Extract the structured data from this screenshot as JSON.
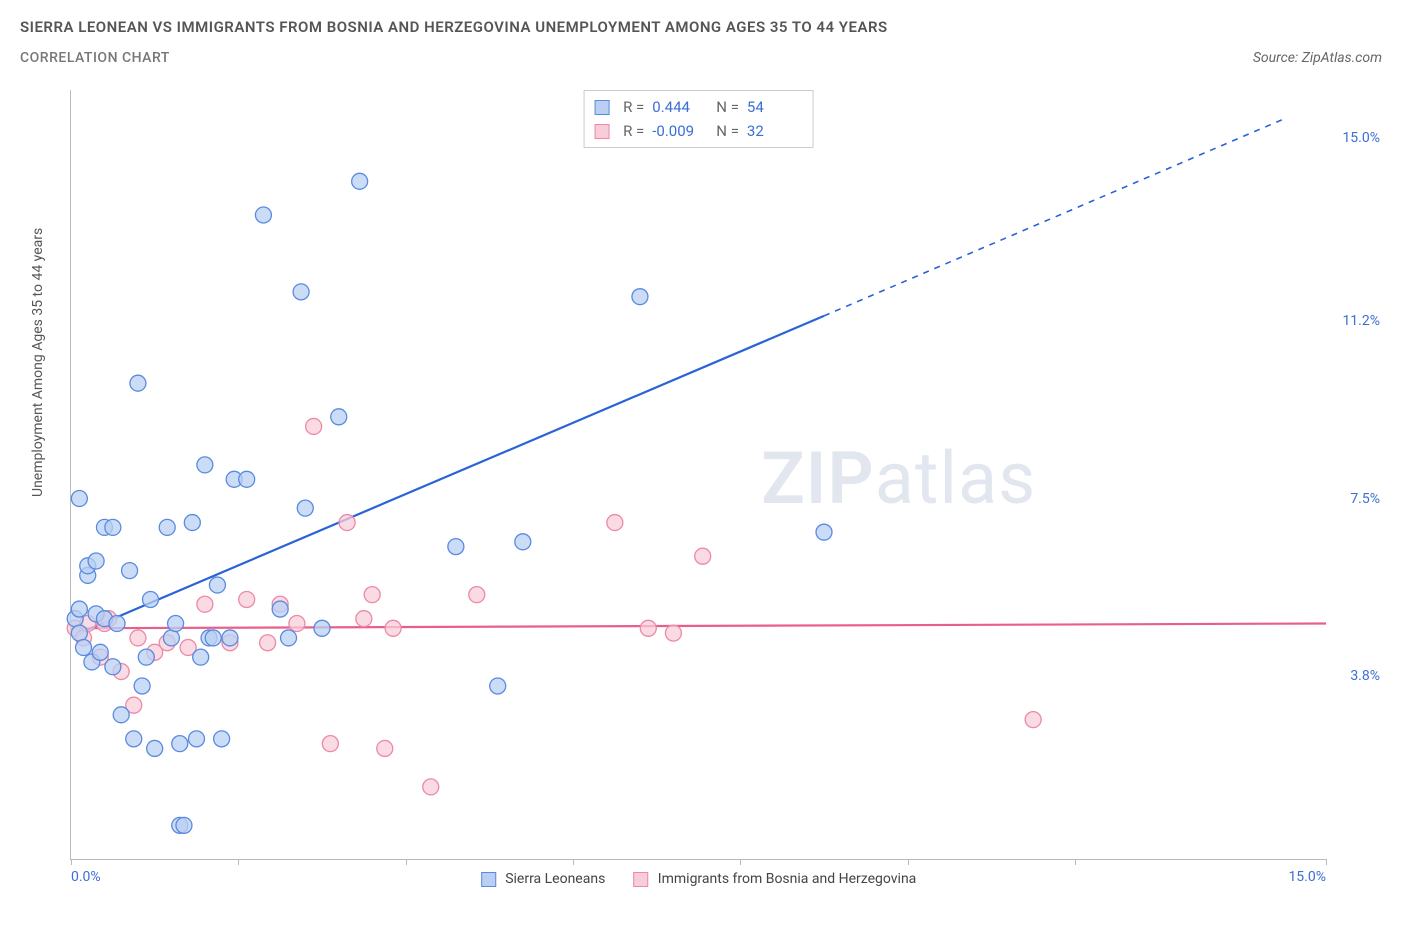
{
  "title": "SIERRA LEONEAN VS IMMIGRANTS FROM BOSNIA AND HERZEGOVINA UNEMPLOYMENT AMONG AGES 35 TO 44 YEARS",
  "subtitle": "CORRELATION CHART",
  "source": "Source: ZipAtlas.com",
  "y_axis_label": "Unemployment Among Ages 35 to 44 years",
  "watermark_a": "ZIP",
  "watermark_b": "atlas",
  "axes": {
    "xlim": [
      0,
      15
    ],
    "ylim": [
      0,
      16
    ],
    "x_ticks_at": [
      0,
      2,
      4,
      6,
      8,
      10,
      12,
      15
    ],
    "x_tick_labels": [
      {
        "pos": 0,
        "text": "0.0%"
      },
      {
        "pos": 15,
        "text": "15.0%",
        "align": "right"
      }
    ],
    "y_tick_labels": [
      {
        "pos": 3.8,
        "text": "3.8%"
      },
      {
        "pos": 7.5,
        "text": "7.5%"
      },
      {
        "pos": 11.2,
        "text": "11.2%"
      },
      {
        "pos": 15.0,
        "text": "15.0%"
      }
    ]
  },
  "series": {
    "a": {
      "name": "Sierra Leoneans",
      "stroke": "#2a63d6",
      "fill": "#b9d0f3",
      "marker_border": "#5a8ae0",
      "marker_r": 8,
      "R": "0.444",
      "N": "54",
      "trend": {
        "x1": 0.1,
        "y1": 4.7,
        "x2": 9.0,
        "y2": 11.3,
        "ext_x2": 14.5,
        "ext_y2": 15.4
      },
      "points": [
        [
          0.05,
          5.0
        ],
        [
          0.1,
          5.2
        ],
        [
          0.1,
          4.7
        ],
        [
          0.1,
          7.5
        ],
        [
          0.15,
          4.4
        ],
        [
          0.2,
          5.9
        ],
        [
          0.2,
          6.1
        ],
        [
          0.25,
          4.1
        ],
        [
          0.3,
          6.2
        ],
        [
          0.3,
          5.1
        ],
        [
          0.35,
          4.3
        ],
        [
          0.4,
          6.9
        ],
        [
          0.4,
          5.0
        ],
        [
          0.5,
          4.0
        ],
        [
          0.5,
          6.9
        ],
        [
          0.55,
          4.9
        ],
        [
          0.6,
          3.0
        ],
        [
          0.7,
          6.0
        ],
        [
          0.75,
          2.5
        ],
        [
          0.8,
          9.9
        ],
        [
          0.85,
          3.6
        ],
        [
          0.9,
          4.2
        ],
        [
          0.95,
          5.4
        ],
        [
          1.0,
          2.3
        ],
        [
          1.15,
          6.9
        ],
        [
          1.2,
          4.6
        ],
        [
          1.25,
          4.9
        ],
        [
          1.3,
          2.4
        ],
        [
          1.3,
          0.7
        ],
        [
          1.35,
          0.7
        ],
        [
          1.45,
          7.0
        ],
        [
          1.5,
          2.5
        ],
        [
          1.55,
          4.2
        ],
        [
          1.6,
          8.2
        ],
        [
          1.65,
          4.6
        ],
        [
          1.7,
          4.6
        ],
        [
          1.75,
          5.7
        ],
        [
          1.8,
          2.5
        ],
        [
          1.9,
          4.6
        ],
        [
          1.95,
          7.9
        ],
        [
          2.1,
          7.9
        ],
        [
          2.3,
          13.4
        ],
        [
          2.5,
          5.2
        ],
        [
          2.6,
          4.6
        ],
        [
          2.75,
          11.8
        ],
        [
          2.8,
          7.3
        ],
        [
          3.0,
          4.8
        ],
        [
          3.2,
          9.2
        ],
        [
          3.45,
          14.1
        ],
        [
          4.6,
          6.5
        ],
        [
          5.1,
          3.6
        ],
        [
          5.4,
          6.6
        ],
        [
          6.8,
          11.7
        ],
        [
          9.0,
          6.8
        ]
      ]
    },
    "b": {
      "name": "Immigrants from Bosnia and Herzegovina",
      "stroke": "#e95f8a",
      "fill": "#f8cdd9",
      "marker_border": "#ec89a7",
      "marker_r": 8,
      "R": "-0.009",
      "N": "32",
      "trend": {
        "x1": 0.0,
        "y1": 4.8,
        "x2": 15.0,
        "y2": 4.9
      },
      "points": [
        [
          0.05,
          4.8
        ],
        [
          0.15,
          4.6
        ],
        [
          0.2,
          4.9
        ],
        [
          0.35,
          4.2
        ],
        [
          0.4,
          4.9
        ],
        [
          0.45,
          5.0
        ],
        [
          0.6,
          3.9
        ],
        [
          0.75,
          3.2
        ],
        [
          0.8,
          4.6
        ],
        [
          1.0,
          4.3
        ],
        [
          1.15,
          4.5
        ],
        [
          1.4,
          4.4
        ],
        [
          1.6,
          5.3
        ],
        [
          1.9,
          4.5
        ],
        [
          2.1,
          5.4
        ],
        [
          2.35,
          4.5
        ],
        [
          2.5,
          5.3
        ],
        [
          2.7,
          4.9
        ],
        [
          2.9,
          9.0
        ],
        [
          3.1,
          2.4
        ],
        [
          3.3,
          7.0
        ],
        [
          3.5,
          5.0
        ],
        [
          3.6,
          5.5
        ],
        [
          3.75,
          2.3
        ],
        [
          3.85,
          4.8
        ],
        [
          4.3,
          1.5
        ],
        [
          4.85,
          5.5
        ],
        [
          6.5,
          7.0
        ],
        [
          6.9,
          4.8
        ],
        [
          7.2,
          4.7
        ],
        [
          7.55,
          6.3
        ],
        [
          11.5,
          2.9
        ]
      ]
    }
  },
  "corr_box": {
    "r_label": "R =",
    "n_label": "N ="
  },
  "legend_bottom": {
    "a_label": "Sierra Leoneans",
    "b_label": "Immigrants from Bosnia and Herzegovina"
  }
}
